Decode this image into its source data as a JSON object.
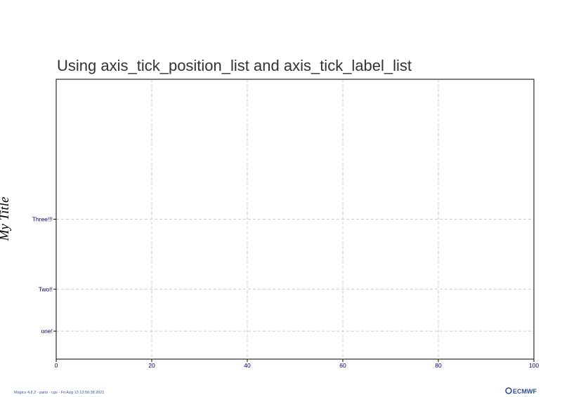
{
  "chart_data": {
    "type": "line",
    "title": "Using axis_tick_position_list and axis_tick_label_list",
    "ylabel": "My Title",
    "xlabel": "",
    "xlim": [
      0,
      100
    ],
    "ylim": [
      0,
      100
    ],
    "x_ticks": [
      0,
      20,
      40,
      60,
      80,
      100
    ],
    "y_ticks": [
      {
        "value": 10,
        "label": "one!"
      },
      {
        "value": 25,
        "label": "Two!!"
      },
      {
        "value": 50,
        "label": "Three!!!"
      }
    ],
    "grid": true,
    "series": []
  },
  "footer": {
    "credit": "Magics 4.8.2 - parts - cgs - Fri Aug 13 13:50:38 2021",
    "logo": "ECMWF"
  },
  "colors": {
    "title": "#333333",
    "tick_label": "#000066",
    "grid": "#cccccc",
    "frame": "#000000",
    "footer": "#3355aa",
    "logo": "#2a4a9a"
  }
}
